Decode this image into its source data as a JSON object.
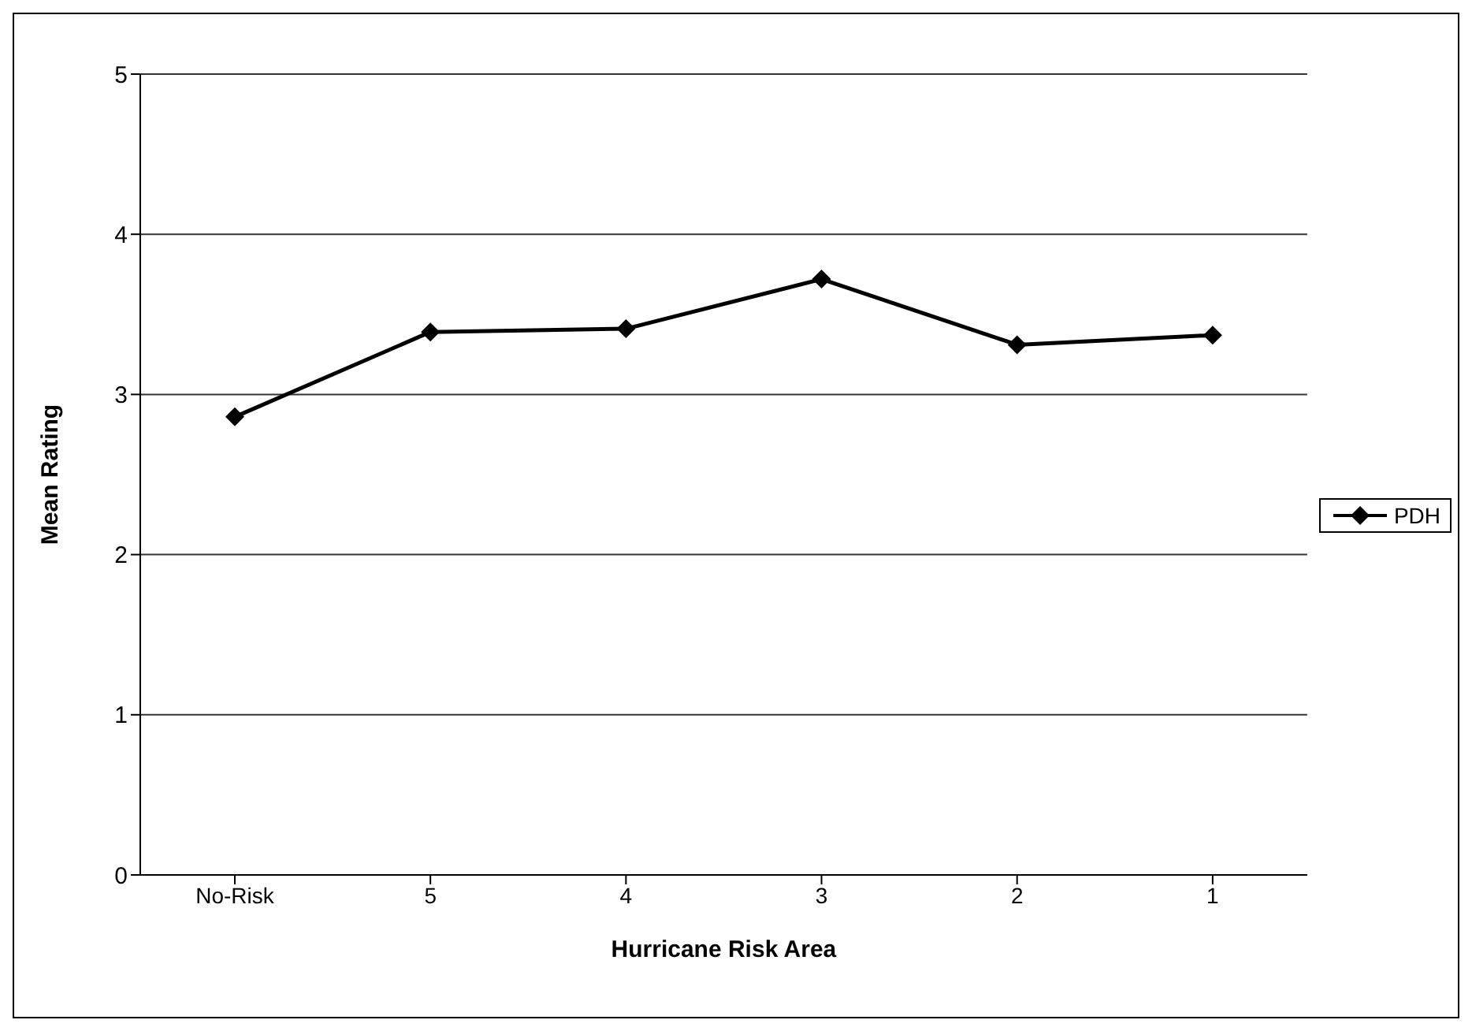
{
  "chart_data": {
    "type": "line",
    "xlabel": "Hurricane Risk Area",
    "ylabel": "Mean Rating",
    "categories": [
      "No-Risk",
      "5",
      "4",
      "3",
      "2",
      "1"
    ],
    "series": [
      {
        "name": "PDH",
        "color": "#000000",
        "values": [
          2.86,
          3.39,
          3.41,
          3.72,
          3.31,
          3.37
        ]
      }
    ],
    "ylim": [
      0,
      5
    ],
    "yticks": [
      0,
      1,
      2,
      3,
      4,
      5
    ],
    "grid": "y",
    "legend": "right",
    "marker": "diamond",
    "line_style": "solid"
  }
}
